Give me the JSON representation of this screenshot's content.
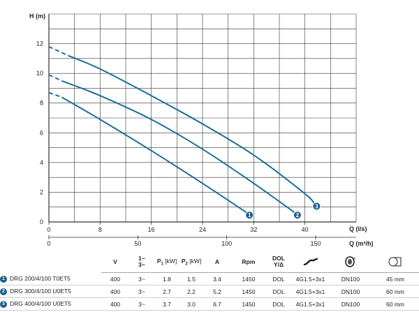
{
  "chart_data": {
    "type": "line",
    "ylabel": "H (m)",
    "xlabel": "Q (l/s)",
    "xlabel2": "Q (m³/h)",
    "xlim": [
      0,
      48
    ],
    "ylim": [
      0,
      14
    ],
    "x_ticks": [
      "0",
      "8",
      "16",
      "24",
      "32",
      "40"
    ],
    "x_tick_values": [
      0,
      8,
      16,
      24,
      32,
      40
    ],
    "x2_ticks": [
      "0",
      "50",
      "100",
      "150"
    ],
    "x2_tick_values": [
      0,
      50,
      100,
      150
    ],
    "y_ticks": [
      "0",
      "2",
      "4",
      "6",
      "8",
      "10",
      "12"
    ],
    "y_tick_values": [
      0,
      2,
      4,
      6,
      8,
      10,
      12
    ],
    "grid": true,
    "series": [
      {
        "name": "1",
        "dashed_until": 2,
        "x": [
          0,
          2,
          8,
          16,
          24,
          31
        ],
        "y": [
          8.7,
          8.4,
          6.9,
          4.8,
          2.6,
          0.6
        ]
      },
      {
        "name": "2",
        "dashed_until": 2,
        "x": [
          0,
          2,
          8,
          16,
          24,
          32,
          38.5
        ],
        "y": [
          9.9,
          9.5,
          8.5,
          6.9,
          4.9,
          2.6,
          0.6
        ]
      },
      {
        "name": "3",
        "dashed_until": 3,
        "x": [
          0,
          3,
          8,
          16,
          24,
          32,
          40,
          41.5
        ],
        "y": [
          11.8,
          11.2,
          10.3,
          8.5,
          6.6,
          4.5,
          1.9,
          1.2
        ]
      }
    ]
  },
  "colors": {
    "curve": "#1b6f95",
    "grid": "#333333",
    "badge": "#1b5e8c"
  },
  "table": {
    "headers": {
      "v": "V",
      "phase_top": "1~",
      "phase_bottom": "3~",
      "p1": "P",
      "p1_sub": "1",
      "p1_unit": " [kW]",
      "p2": "P",
      "p2_sub": "2",
      "p2_unit": " [kW]",
      "a": "A",
      "rpm": "Rpm",
      "dol_top": "DOL",
      "dol_bottom": "Y/Δ",
      "cable_icon": "cable-icon",
      "flange_icon": "flange-icon",
      "outlet_icon": "outlet-diameter-icon"
    },
    "rows": [
      {
        "num": "1",
        "model": "DRG 200/4/100 T0ET5",
        "v": "400",
        "phase": "3~",
        "p1": "1.8",
        "p2": "1.5",
        "a": "3.4",
        "rpm": "1450",
        "start": "DOL",
        "cable": "4G1.5+3x1",
        "dn": "DN100",
        "outlet": "45 mm"
      },
      {
        "num": "2",
        "model": "DRG 300/4/100 U0ET5",
        "v": "400",
        "phase": "3~",
        "p1": "2.7",
        "p2": "2.2",
        "a": "5.2",
        "rpm": "1450",
        "start": "DOL",
        "cable": "4G1.5+3x1",
        "dn": "DN100",
        "outlet": "60 mm"
      },
      {
        "num": "3",
        "model": "DRG 400/4/100 U0ET5",
        "v": "400",
        "phase": "3~",
        "p1": "3.7",
        "p2": "3.0",
        "a": "6.7",
        "rpm": "1450",
        "start": "DOL",
        "cable": "4G1.5+3x1",
        "dn": "DN100",
        "outlet": "60 mm"
      }
    ]
  }
}
